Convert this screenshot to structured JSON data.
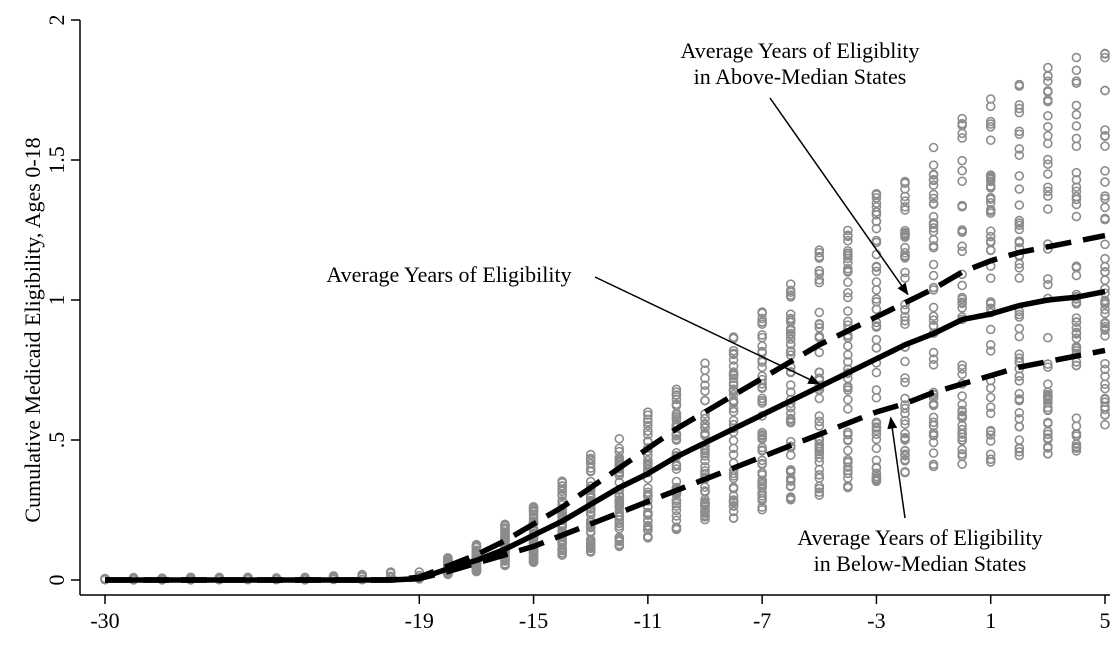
{
  "chart_data": {
    "type": "scatter",
    "title": "",
    "ylabel": "Cumulative Medicaid Eligibility, Ages 0-18",
    "xlabel": "",
    "xlim": [
      -30,
      5
    ],
    "ylim": [
      0,
      2
    ],
    "x_ticks": [
      -30,
      -19,
      -15,
      -11,
      -7,
      -3,
      1,
      5
    ],
    "x_tick_labels": [
      "-30",
      "-19",
      "-15",
      "-11",
      "-7",
      "-3",
      "1",
      "5"
    ],
    "y_ticks": [
      0,
      0.5,
      1,
      1.5,
      2
    ],
    "y_tick_labels": [
      "0",
      ".5",
      "1",
      "1.5",
      "2"
    ],
    "grid": false,
    "lines": [
      {
        "name": "Average Years of Eligiblity in Above-Median States",
        "style": "dashed",
        "x": [
          -30,
          -28,
          -26,
          -24,
          -22,
          -20,
          -19,
          -18,
          -17,
          -16,
          -15,
          -14,
          -13,
          -12,
          -11,
          -10,
          -9,
          -8,
          -7,
          -6,
          -5,
          -4,
          -3,
          -2,
          -1,
          0,
          1,
          2,
          3,
          4,
          5
        ],
        "y": [
          0.0,
          0.0,
          0.0,
          0.0,
          0.0,
          0.0,
          0.01,
          0.05,
          0.09,
          0.14,
          0.2,
          0.26,
          0.33,
          0.4,
          0.47,
          0.54,
          0.6,
          0.66,
          0.72,
          0.78,
          0.84,
          0.89,
          0.94,
          0.99,
          1.04,
          1.1,
          1.14,
          1.17,
          1.19,
          1.21,
          1.23
        ]
      },
      {
        "name": "Average Years of Eligibility",
        "style": "solid",
        "x": [
          -30,
          -28,
          -26,
          -24,
          -22,
          -20,
          -19,
          -18,
          -17,
          -16,
          -15,
          -14,
          -13,
          -12,
          -11,
          -10,
          -9,
          -8,
          -7,
          -6,
          -5,
          -4,
          -3,
          -2,
          -1,
          0,
          1,
          2,
          3,
          4,
          5
        ],
        "y": [
          0.0,
          0.0,
          0.0,
          0.0,
          0.0,
          0.0,
          0.005,
          0.04,
          0.07,
          0.11,
          0.16,
          0.21,
          0.27,
          0.33,
          0.38,
          0.44,
          0.49,
          0.54,
          0.59,
          0.64,
          0.69,
          0.74,
          0.79,
          0.84,
          0.88,
          0.93,
          0.95,
          0.98,
          1.0,
          1.01,
          1.03
        ]
      },
      {
        "name": "Average Years of Eligibility in Below-Median States",
        "style": "dashed",
        "x": [
          -30,
          -28,
          -26,
          -24,
          -22,
          -20,
          -19,
          -18,
          -17,
          -16,
          -15,
          -14,
          -13,
          -12,
          -11,
          -10,
          -9,
          -8,
          -7,
          -6,
          -5,
          -4,
          -3,
          -2,
          -1,
          0,
          1,
          2,
          3,
          4,
          5
        ],
        "y": [
          0.0,
          0.0,
          0.0,
          0.0,
          0.0,
          0.0,
          0.005,
          0.03,
          0.06,
          0.09,
          0.12,
          0.16,
          0.2,
          0.24,
          0.28,
          0.32,
          0.36,
          0.4,
          0.44,
          0.48,
          0.52,
          0.56,
          0.6,
          0.63,
          0.67,
          0.7,
          0.73,
          0.76,
          0.78,
          0.8,
          0.82
        ]
      }
    ],
    "scatter_years": [
      -30,
      -29,
      -28,
      -27,
      -26,
      -25,
      -24,
      -23,
      -22,
      -21,
      -20,
      -19,
      -18,
      -17,
      -16,
      -15,
      -14,
      -13,
      -12,
      -11,
      -10,
      -9,
      -8,
      -7,
      -6,
      -5,
      -4,
      -3,
      -2,
      -1,
      0,
      1,
      2,
      3,
      4,
      5
    ],
    "scatter_min": [
      0,
      0,
      0,
      0,
      0,
      0,
      0,
      0,
      0,
      0,
      0,
      0,
      0.02,
      0.03,
      0.05,
      0.06,
      0.08,
      0.1,
      0.12,
      0.15,
      0.18,
      0.2,
      0.22,
      0.25,
      0.28,
      0.3,
      0.32,
      0.35,
      0.38,
      0.4,
      0.4,
      0.42,
      0.44,
      0.45,
      0.46,
      0.47
    ],
    "scatter_max": [
      0.01,
      0.01,
      0.01,
      0.01,
      0.01,
      0.01,
      0.01,
      0.01,
      0.02,
      0.03,
      0.03,
      0.04,
      0.08,
      0.13,
      0.2,
      0.27,
      0.36,
      0.45,
      0.52,
      0.6,
      0.69,
      0.78,
      0.88,
      0.98,
      1.08,
      1.19,
      1.3,
      1.39,
      1.47,
      1.57,
      1.67,
      1.74,
      1.8,
      1.85,
      1.89,
      1.9
    ],
    "annotations": [
      {
        "lines": [
          "Average Years of Eligiblity",
          "in Above-Median States"
        ],
        "arrow_to": [
          -1.9,
          1.02
        ]
      },
      {
        "lines": [
          "Average Years of Eligibility"
        ],
        "arrow_to": [
          -5.0,
          0.7
        ]
      },
      {
        "lines": [
          "Average Years of Eligibility",
          "in Below-Median States"
        ],
        "arrow_to": [
          -2.5,
          0.58
        ]
      }
    ]
  }
}
